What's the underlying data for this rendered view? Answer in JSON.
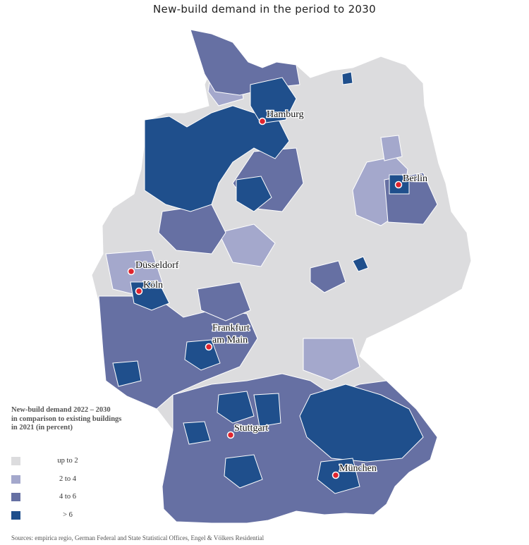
{
  "title": "New-build demand in the period to 2030",
  "colors": {
    "background": "#ffffff",
    "up_to_2": "#dcdcde",
    "2_to_4": "#a4a8cc",
    "4_to_6": "#6670a3",
    "over_6": "#1f4f8c",
    "city_marker": "#e0242e",
    "boundary": "#ffffff"
  },
  "cities": [
    {
      "name": "Hamburg",
      "label": "Hamburg"
    },
    {
      "name": "Berlin",
      "label": "Berlin"
    },
    {
      "name": "Düsseldorf",
      "label": "Düsseldorf"
    },
    {
      "name": "Köln",
      "label": "Köln"
    },
    {
      "name": "Frankfurt am Main",
      "label_line1": "Frankfurt",
      "label_line2": "am Main"
    },
    {
      "name": "Stuttgart",
      "label": "Stuttgart"
    },
    {
      "name": "München",
      "label": "München"
    }
  ],
  "legend": {
    "title_line1": "New-build demand 2022 – 2030",
    "title_line2": "in comparison to existing buildings",
    "title_line3": "in 2021 (in percent)",
    "items": [
      {
        "label": "up to 2",
        "color_key": "up_to_2"
      },
      {
        "label": "2 to 4",
        "color_key": "2_to_4"
      },
      {
        "label": "4 to 6",
        "color_key": "4_to_6"
      },
      {
        "label": "> 6",
        "color_key": "over_6"
      }
    ]
  },
  "source": "Sources: empirica regio, German Federal and State Statistical Offices, Engel & Völkers Residential"
}
